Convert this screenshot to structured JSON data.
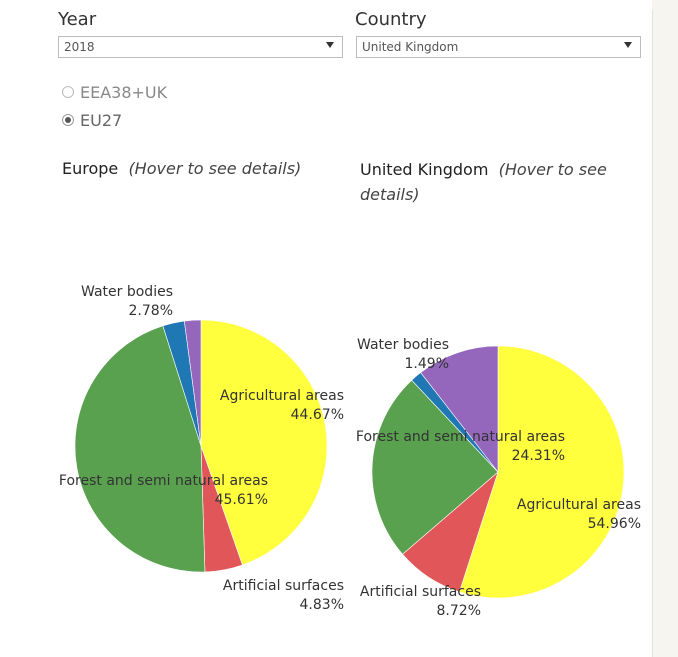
{
  "filters": {
    "year_label": "Year",
    "year_value": "2018",
    "country_label": "Country",
    "country_value": "United Kingdom"
  },
  "region_options": [
    {
      "label": "EEA38+UK",
      "selected": false
    },
    {
      "label": "EU27",
      "selected": true
    }
  ],
  "colors": {
    "agricultural": "#ffff3d",
    "artificial": "#e15759",
    "forest": "#59a14f",
    "water": "#1f77b4",
    "other": "#9467bd"
  },
  "chart_data": [
    {
      "type": "pie",
      "title": "Europe",
      "subtitle": "(Hover to see details)",
      "slices": [
        {
          "name": "Agricultural areas",
          "value": 44.67,
          "label": "44.67%",
          "color": "#ffff3d"
        },
        {
          "name": "Artificial surfaces",
          "value": 4.83,
          "label": "4.83%",
          "color": "#e15759"
        },
        {
          "name": "Forest and semi natural areas",
          "value": 45.61,
          "label": "45.61%",
          "color": "#59a14f"
        },
        {
          "name": "Water bodies",
          "value": 2.78,
          "label": "2.78%",
          "color": "#1f77b4"
        },
        {
          "name": "",
          "value": 2.11,
          "label": "",
          "color": "#9467bd"
        }
      ]
    },
    {
      "type": "pie",
      "title": "United Kingdom",
      "subtitle": "(Hover to see details)",
      "slices": [
        {
          "name": "Agricultural areas",
          "value": 54.96,
          "label": "54.96%",
          "color": "#ffff3d"
        },
        {
          "name": "Artificial surfaces",
          "value": 8.72,
          "label": "8.72%",
          "color": "#e15759"
        },
        {
          "name": "Forest and semi natural areas",
          "value": 24.31,
          "label": "24.31%",
          "color": "#59a14f"
        },
        {
          "name": "Water bodies",
          "value": 1.49,
          "label": "1.49%",
          "color": "#1f77b4"
        },
        {
          "name": "",
          "value": 10.52,
          "label": "",
          "color": "#9467bd"
        }
      ]
    }
  ]
}
